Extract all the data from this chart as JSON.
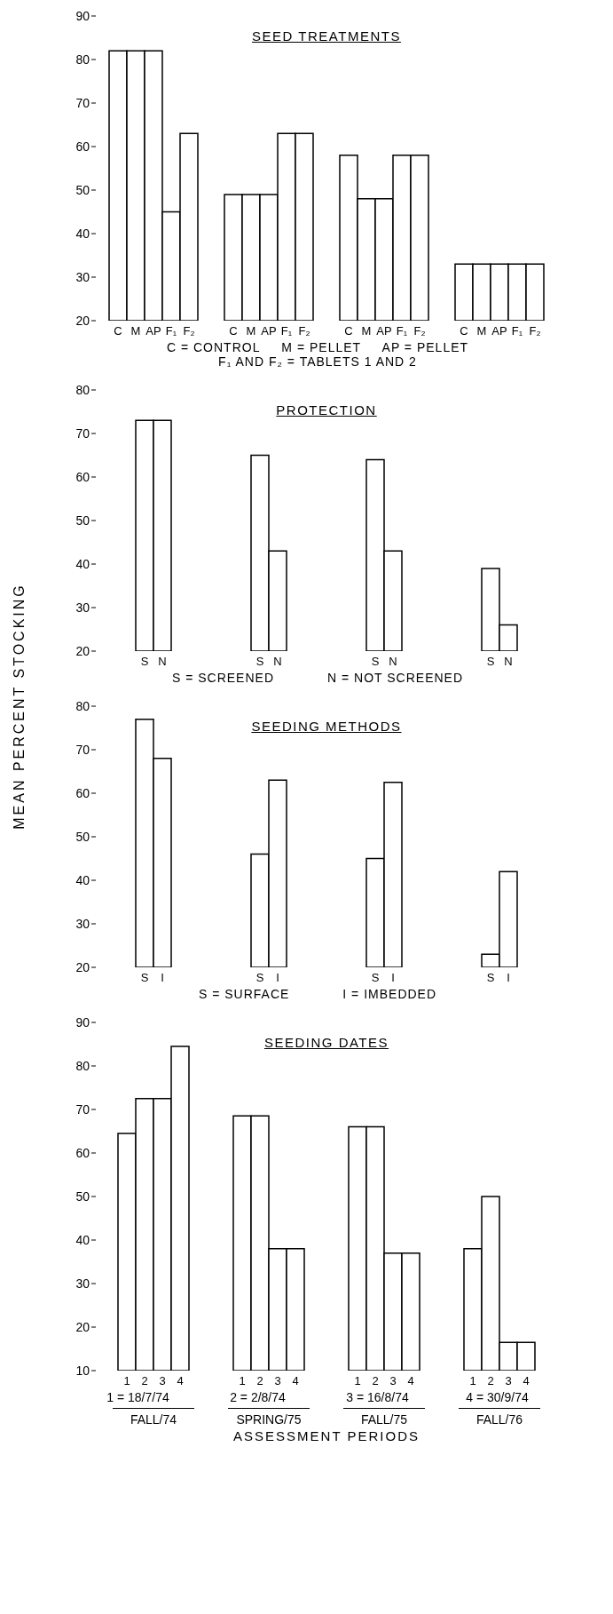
{
  "chart_data": [
    {
      "type": "bar",
      "title": "SEED TREATMENTS",
      "categories": [
        null,
        null,
        null,
        null
      ],
      "ylim": [
        20,
        90
      ],
      "yticks": [
        20,
        30,
        40,
        50,
        60,
        70,
        80,
        90
      ],
      "grid": false,
      "series": [
        {
          "name": "C",
          "color": "#ffffff",
          "values": [
            82,
            49,
            58,
            33
          ]
        },
        {
          "name": "M",
          "color": "#ffffff",
          "values": [
            82,
            49,
            48,
            33
          ]
        },
        {
          "name": "AP",
          "color": "#ffffff",
          "values": [
            82,
            49,
            48,
            33
          ]
        },
        {
          "name": "F₁",
          "color": "#ffffff",
          "values": [
            45,
            63,
            58,
            33
          ]
        },
        {
          "name": "F₂",
          "color": "#ffffff",
          "values": [
            63,
            63,
            58,
            33
          ]
        }
      ],
      "annotations": [
        "C = CONTROL     M = PELLET     AP = PELLET",
        "F₁ AND F₂ = TABLETS 1 AND 2"
      ]
    },
    {
      "type": "bar",
      "title": "PROTECTION",
      "ylabel": "MEAN PERCENT STOCKING",
      "categories": [
        null,
        null,
        null,
        null
      ],
      "ylim": [
        20,
        80
      ],
      "yticks": [
        20,
        30,
        40,
        50,
        60,
        70,
        80
      ],
      "grid": false,
      "series": [
        {
          "name": "S",
          "color": "#ffffff",
          "values": [
            73,
            65,
            64,
            39
          ]
        },
        {
          "name": "N",
          "color": "#ffffff",
          "values": [
            73,
            43,
            43,
            26
          ]
        }
      ],
      "annotations": [
        "S = SCREENED",
        "N = NOT SCREENED"
      ]
    },
    {
      "type": "bar",
      "title": "SEEDING METHODS",
      "categories": [
        null,
        null,
        null,
        null
      ],
      "ylim": [
        20,
        80
      ],
      "yticks": [
        20,
        30,
        40,
        50,
        60,
        70,
        80
      ],
      "grid": false,
      "series": [
        {
          "name": "S",
          "color": "#ffffff",
          "values": [
            77,
            46,
            45,
            23
          ]
        },
        {
          "name": "I",
          "color": "#ffffff",
          "values": [
            68,
            63,
            62.5,
            42
          ]
        }
      ],
      "annotations": [
        "S = SURFACE",
        "I = IMBEDDED"
      ]
    },
    {
      "type": "bar",
      "title": "SEEDING DATES",
      "xlabel": "ASSESSMENT PERIODS",
      "categories": [
        "FALL/74",
        "SPRING/75",
        "FALL/75",
        "FALL/76"
      ],
      "ylim": [
        10,
        90
      ],
      "yticks": [
        10,
        20,
        30,
        40,
        50,
        60,
        70,
        80,
        90
      ],
      "grid": false,
      "series": [
        {
          "name": "1",
          "color": "#ffffff",
          "values": [
            64.5,
            68.5,
            66,
            38
          ]
        },
        {
          "name": "2",
          "color": "#ffffff",
          "values": [
            72.5,
            68.5,
            66,
            50
          ]
        },
        {
          "name": "3",
          "color": "#ffffff",
          "values": [
            72.5,
            38,
            37,
            16.5
          ]
        },
        {
          "name": "4",
          "color": "#ffffff",
          "values": [
            84.5,
            38,
            37,
            16.5
          ]
        }
      ],
      "annotations": [
        "1 = 18/7/74",
        "2 = 2/8/74",
        "3 = 16/8/74",
        "4 = 30/9/74"
      ]
    }
  ]
}
